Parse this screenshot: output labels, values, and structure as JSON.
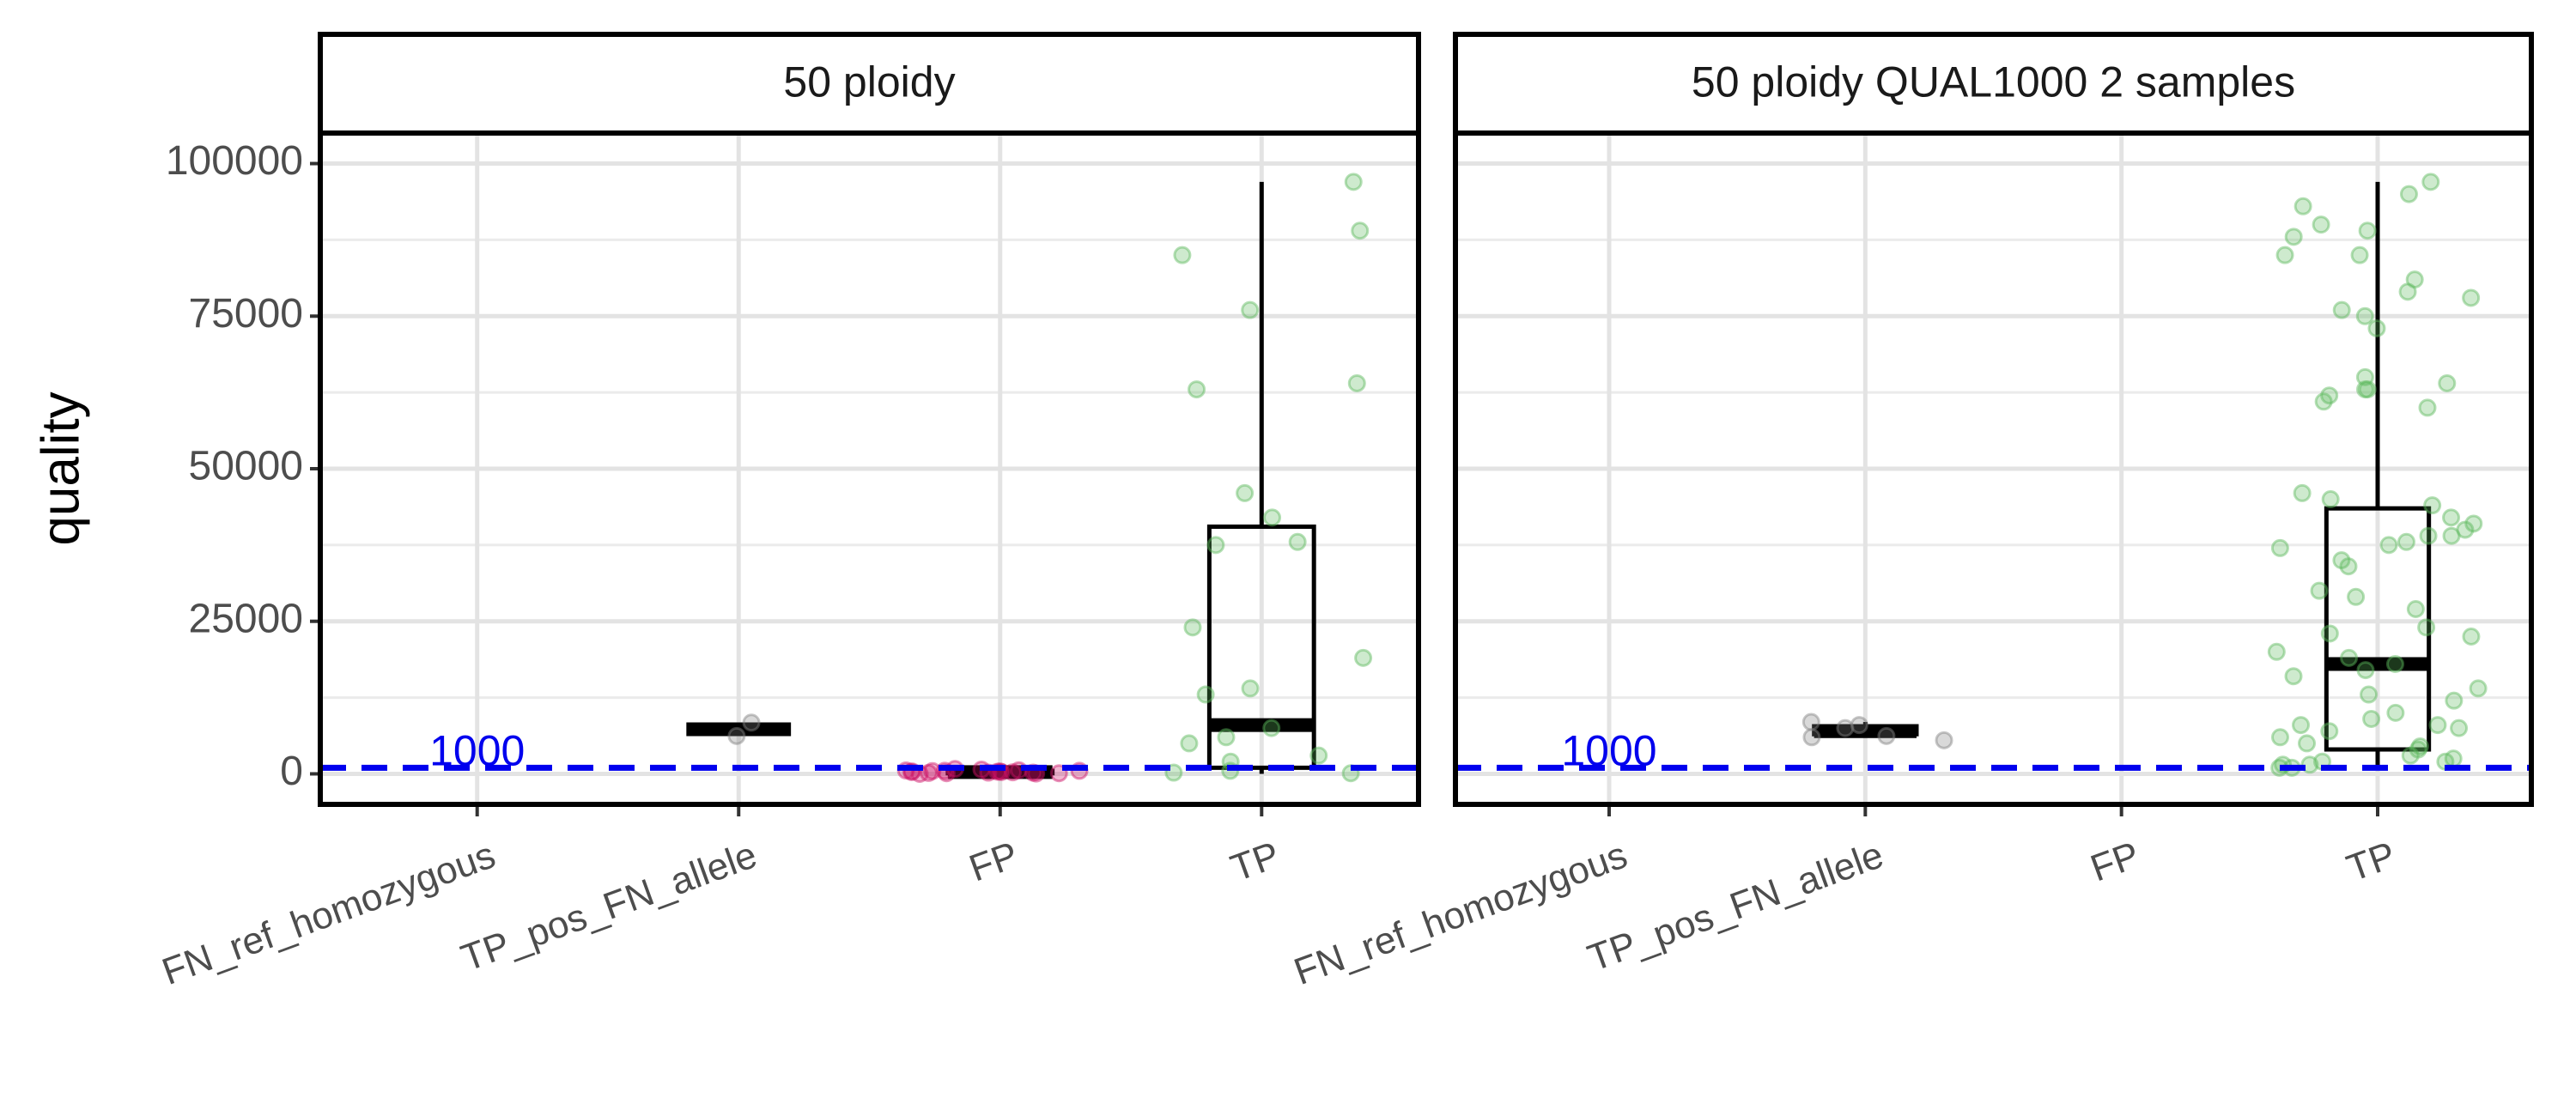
{
  "chart_data": [
    {
      "type": "box",
      "title": "50 ploidy",
      "ylabel": "quality",
      "categories": [
        "FN_ref_homozygous",
        "TP_pos_FN_allele",
        "FP",
        "TP"
      ],
      "colors": [
        "#808080",
        "#808080",
        "#cc1166",
        "#5cb85c"
      ],
      "boxes": [
        null,
        {
          "whisker_low": 7300,
          "q1": 7300,
          "median": 7300,
          "q3": 7300,
          "whisker_high": 7300
        },
        {
          "whisker_low": 0,
          "q1": 100,
          "median": 300,
          "q3": 500,
          "whisker_high": 800
        },
        {
          "whisker_low": 0,
          "q1": 1000,
          "median": 8000,
          "q3": 40500,
          "whisker_high": 97000
        }
      ],
      "points": [
        [],
        [
          6200,
          8400
        ],
        [
          0,
          100,
          200,
          300,
          400,
          500,
          600,
          700,
          800,
          100,
          200,
          300,
          400,
          500,
          50,
          150,
          250,
          350,
          450,
          550
        ],
        [
          97000,
          89000,
          85000,
          76000,
          64000,
          63000,
          46000,
          42000,
          38000,
          37500,
          24000,
          19000,
          14000,
          13000,
          7500,
          6000,
          5000,
          3000,
          2000,
          500,
          200,
          100
        ]
      ],
      "hline": 1000,
      "hline_color": "#0000ee",
      "ylim": [
        -5000,
        105000
      ],
      "yticks": [
        0,
        25000,
        50000,
        75000,
        100000
      ],
      "grid": true
    },
    {
      "type": "box",
      "title": "50 ploidy QUAL1000 2 samples",
      "categories": [
        "FN_ref_homozygous",
        "TP_pos_FN_allele",
        "FP",
        "TP"
      ],
      "colors": [
        "#808080",
        "#808080",
        "#cc1166",
        "#5cb85c"
      ],
      "boxes": [
        null,
        {
          "whisker_low": 6000,
          "q1": 6500,
          "median": 7000,
          "q3": 7800,
          "whisker_high": 8500
        },
        null,
        {
          "whisker_low": 1000,
          "q1": 4000,
          "median": 18000,
          "q3": 43500,
          "whisker_high": 97000
        }
      ],
      "points": [
        [],
        [
          6000,
          5500,
          8000,
          8500,
          6200,
          7500
        ],
        [],
        [
          97000,
          95000,
          93000,
          90000,
          89000,
          88000,
          85000,
          85000,
          81000,
          79000,
          78000,
          76000,
          75000,
          73000,
          65000,
          64000,
          63000,
          63000,
          62000,
          61000,
          60000,
          46000,
          45000,
          44000,
          42000,
          41000,
          40000,
          39000,
          39000,
          38000,
          37500,
          37000,
          35000,
          34000,
          30000,
          29000,
          27000,
          24000,
          23000,
          22500,
          20000,
          19000,
          18000,
          17000,
          16000,
          14000,
          13000,
          12000,
          10000,
          9000,
          8000,
          8000,
          7500,
          7000,
          6000,
          5000,
          4500,
          4000,
          3000,
          2500,
          2000,
          2000,
          1500,
          1500,
          1000,
          1000
        ]
      ],
      "hline": 1000,
      "hline_color": "#0000ee",
      "ylim": [
        -5000,
        105000
      ],
      "yticks": [
        0,
        25000,
        50000,
        75000,
        100000
      ],
      "grid": true
    }
  ]
}
